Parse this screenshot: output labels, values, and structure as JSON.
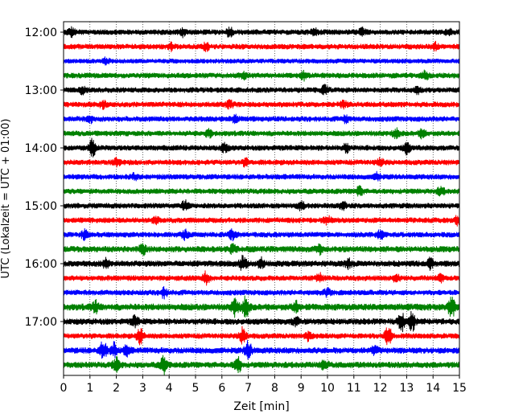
{
  "chart_data": {
    "type": "line",
    "xlabel": "Zeit  [min]",
    "ylabel": "UTC (Lokalzeit = UTC + 01:00)",
    "xlim": [
      0,
      15
    ],
    "x_ticks": [
      "0",
      "1",
      "2",
      "3",
      "4",
      "5",
      "6",
      "7",
      "8",
      "9",
      "10",
      "11",
      "12",
      "13",
      "14",
      "15"
    ],
    "y_ticks": [
      "12:00",
      "13:00",
      "14:00",
      "15:00",
      "16:00",
      "17:00"
    ],
    "minutes_per_trace": 15,
    "trace_colors": [
      "#000000",
      "#ff0000",
      "#0000ff",
      "#008000"
    ],
    "grid": "vertical dotted lines at each minute",
    "series": [
      {
        "utc": "12:00",
        "color": "#000000",
        "amplitude": 0.35,
        "bursts": [
          [
            0.3,
            0.5
          ],
          [
            4.5,
            0.5
          ],
          [
            6.3,
            0.6
          ],
          [
            9.5,
            0.4
          ],
          [
            11.3,
            0.45
          ],
          [
            14.6,
            0.4
          ]
        ]
      },
      {
        "utc": "12:15",
        "color": "#ff0000",
        "amplitude": 0.35,
        "bursts": [
          [
            4.1,
            0.4
          ],
          [
            5.4,
            0.45
          ],
          [
            14.1,
            0.4
          ]
        ]
      },
      {
        "utc": "12:30",
        "color": "#0000ff",
        "amplitude": 0.3,
        "bursts": [
          [
            1.6,
            0.4
          ]
        ]
      },
      {
        "utc": "12:45",
        "color": "#008000",
        "amplitude": 0.35,
        "bursts": [
          [
            6.8,
            0.4
          ],
          [
            9.1,
            0.45
          ],
          [
            13.7,
            0.5
          ]
        ]
      },
      {
        "utc": "13:00",
        "color": "#000000",
        "amplitude": 0.35,
        "bursts": [
          [
            0.7,
            0.4
          ],
          [
            9.9,
            0.55
          ],
          [
            13.4,
            0.4
          ]
        ]
      },
      {
        "utc": "13:15",
        "color": "#ff0000",
        "amplitude": 0.35,
        "bursts": [
          [
            1.5,
            0.4
          ],
          [
            6.3,
            0.45
          ],
          [
            10.6,
            0.4
          ]
        ]
      },
      {
        "utc": "13:30",
        "color": "#0000ff",
        "amplitude": 0.35,
        "bursts": [
          [
            1.0,
            0.4
          ],
          [
            6.5,
            0.4
          ],
          [
            10.7,
            0.4
          ]
        ]
      },
      {
        "utc": "13:45",
        "color": "#008000",
        "amplitude": 0.35,
        "bursts": [
          [
            5.5,
            0.45
          ],
          [
            12.6,
            0.5
          ],
          [
            13.6,
            0.55
          ]
        ]
      },
      {
        "utc": "14:00",
        "color": "#000000",
        "amplitude": 0.35,
        "bursts": [
          [
            1.1,
            1.1
          ],
          [
            6.1,
            0.6
          ],
          [
            10.7,
            0.55
          ],
          [
            13.0,
            0.7
          ]
        ]
      },
      {
        "utc": "14:15",
        "color": "#ff0000",
        "amplitude": 0.35,
        "bursts": [
          [
            2.0,
            0.4
          ],
          [
            6.9,
            0.4
          ],
          [
            12.0,
            0.4
          ]
        ]
      },
      {
        "utc": "14:30",
        "color": "#0000ff",
        "amplitude": 0.35,
        "bursts": [
          [
            2.7,
            0.4
          ],
          [
            11.9,
            0.45
          ]
        ]
      },
      {
        "utc": "14:45",
        "color": "#008000",
        "amplitude": 0.35,
        "bursts": [
          [
            11.2,
            0.65
          ],
          [
            14.3,
            0.5
          ]
        ]
      },
      {
        "utc": "15:00",
        "color": "#000000",
        "amplitude": 0.35,
        "bursts": [
          [
            4.6,
            0.55
          ],
          [
            9.0,
            0.6
          ],
          [
            10.6,
            0.5
          ]
        ]
      },
      {
        "utc": "15:15",
        "color": "#ff0000",
        "amplitude": 0.35,
        "bursts": [
          [
            3.5,
            0.4
          ],
          [
            10.0,
            0.45
          ],
          [
            14.9,
            0.5
          ]
        ]
      },
      {
        "utc": "15:30",
        "color": "#0000ff",
        "amplitude": 0.35,
        "bursts": [
          [
            0.8,
            0.55
          ],
          [
            4.6,
            0.5
          ],
          [
            6.4,
            0.55
          ],
          [
            12.0,
            0.5
          ]
        ]
      },
      {
        "utc": "15:45",
        "color": "#008000",
        "amplitude": 0.4,
        "bursts": [
          [
            3.0,
            0.6
          ],
          [
            6.4,
            0.5
          ],
          [
            9.7,
            0.55
          ]
        ]
      },
      {
        "utc": "16:00",
        "color": "#000000",
        "amplitude": 0.4,
        "bursts": [
          [
            1.6,
            0.5
          ],
          [
            6.8,
            0.9
          ],
          [
            7.5,
            0.6
          ],
          [
            10.8,
            0.5
          ],
          [
            13.9,
            0.6
          ]
        ]
      },
      {
        "utc": "16:15",
        "color": "#ff0000",
        "amplitude": 0.35,
        "bursts": [
          [
            5.4,
            0.75
          ],
          [
            9.7,
            0.5
          ],
          [
            12.6,
            0.5
          ],
          [
            14.3,
            0.4
          ]
        ]
      },
      {
        "utc": "16:30",
        "color": "#0000ff",
        "amplitude": 0.35,
        "bursts": [
          [
            3.8,
            0.6
          ],
          [
            10.0,
            0.45
          ]
        ]
      },
      {
        "utc": "16:45",
        "color": "#008000",
        "amplitude": 0.45,
        "bursts": [
          [
            1.2,
            0.7
          ],
          [
            6.5,
            1.1
          ],
          [
            6.9,
            1.2
          ],
          [
            8.8,
            0.6
          ],
          [
            14.7,
            1.4
          ]
        ]
      },
      {
        "utc": "17:00",
        "color": "#000000",
        "amplitude": 0.4,
        "bursts": [
          [
            2.7,
            0.6
          ],
          [
            8.8,
            0.5
          ],
          [
            12.8,
            1.3
          ],
          [
            13.2,
            1.2
          ]
        ]
      },
      {
        "utc": "17:15",
        "color": "#ff0000",
        "amplitude": 0.35,
        "bursts": [
          [
            2.9,
            1.0
          ],
          [
            6.8,
            1.1
          ],
          [
            9.3,
            0.6
          ],
          [
            12.3,
            1.4
          ]
        ]
      },
      {
        "utc": "17:30",
        "color": "#0000ff",
        "amplitude": 0.4,
        "bursts": [
          [
            1.5,
            1.2
          ],
          [
            1.9,
            0.9
          ],
          [
            2.4,
            0.6
          ],
          [
            7.0,
            1.1
          ],
          [
            11.8,
            0.5
          ]
        ]
      },
      {
        "utc": "17:45",
        "color": "#008000",
        "amplitude": 0.4,
        "bursts": [
          [
            2.0,
            0.8
          ],
          [
            3.8,
            1.1
          ],
          [
            6.6,
            1.0
          ],
          [
            9.9,
            0.6
          ]
        ]
      }
    ]
  }
}
